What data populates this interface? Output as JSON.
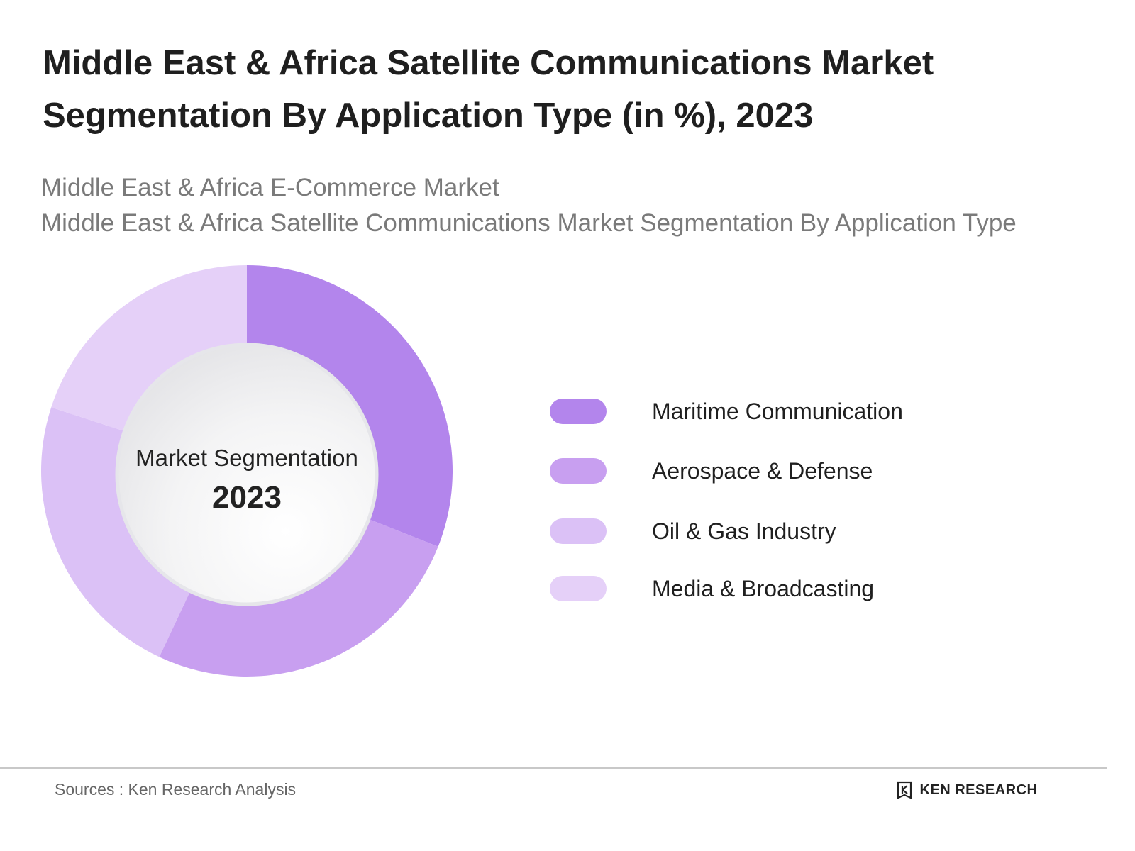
{
  "title": "Middle East & Africa Satellite Communications Market Segmentation By Application Type (in %), 2023",
  "subtitles": [
    "Middle East & Africa E-Commerce Market",
    "Middle East & Africa Satellite Communications Market Segmentation By Application Type"
  ],
  "center": {
    "line1": "Market Segmentation",
    "line2": "2023"
  },
  "footer": {
    "sources": "Sources : Ken Research Analysis",
    "brand": "KEN RESEARCH"
  },
  "chart_data": {
    "type": "pie",
    "variant": "donut",
    "start_angle_deg": 0,
    "direction": "clockwise",
    "categories": [
      "Maritime Communication",
      "Aerospace & Defense",
      "Oil & Gas Industry",
      "Media & Broadcasting"
    ],
    "values": [
      31,
      26,
      23,
      20
    ],
    "unit": "%",
    "colors": [
      "#b385ec",
      "#c89ff0",
      "#dbc1f6",
      "#e5d0f8"
    ],
    "legend_position": "right"
  }
}
